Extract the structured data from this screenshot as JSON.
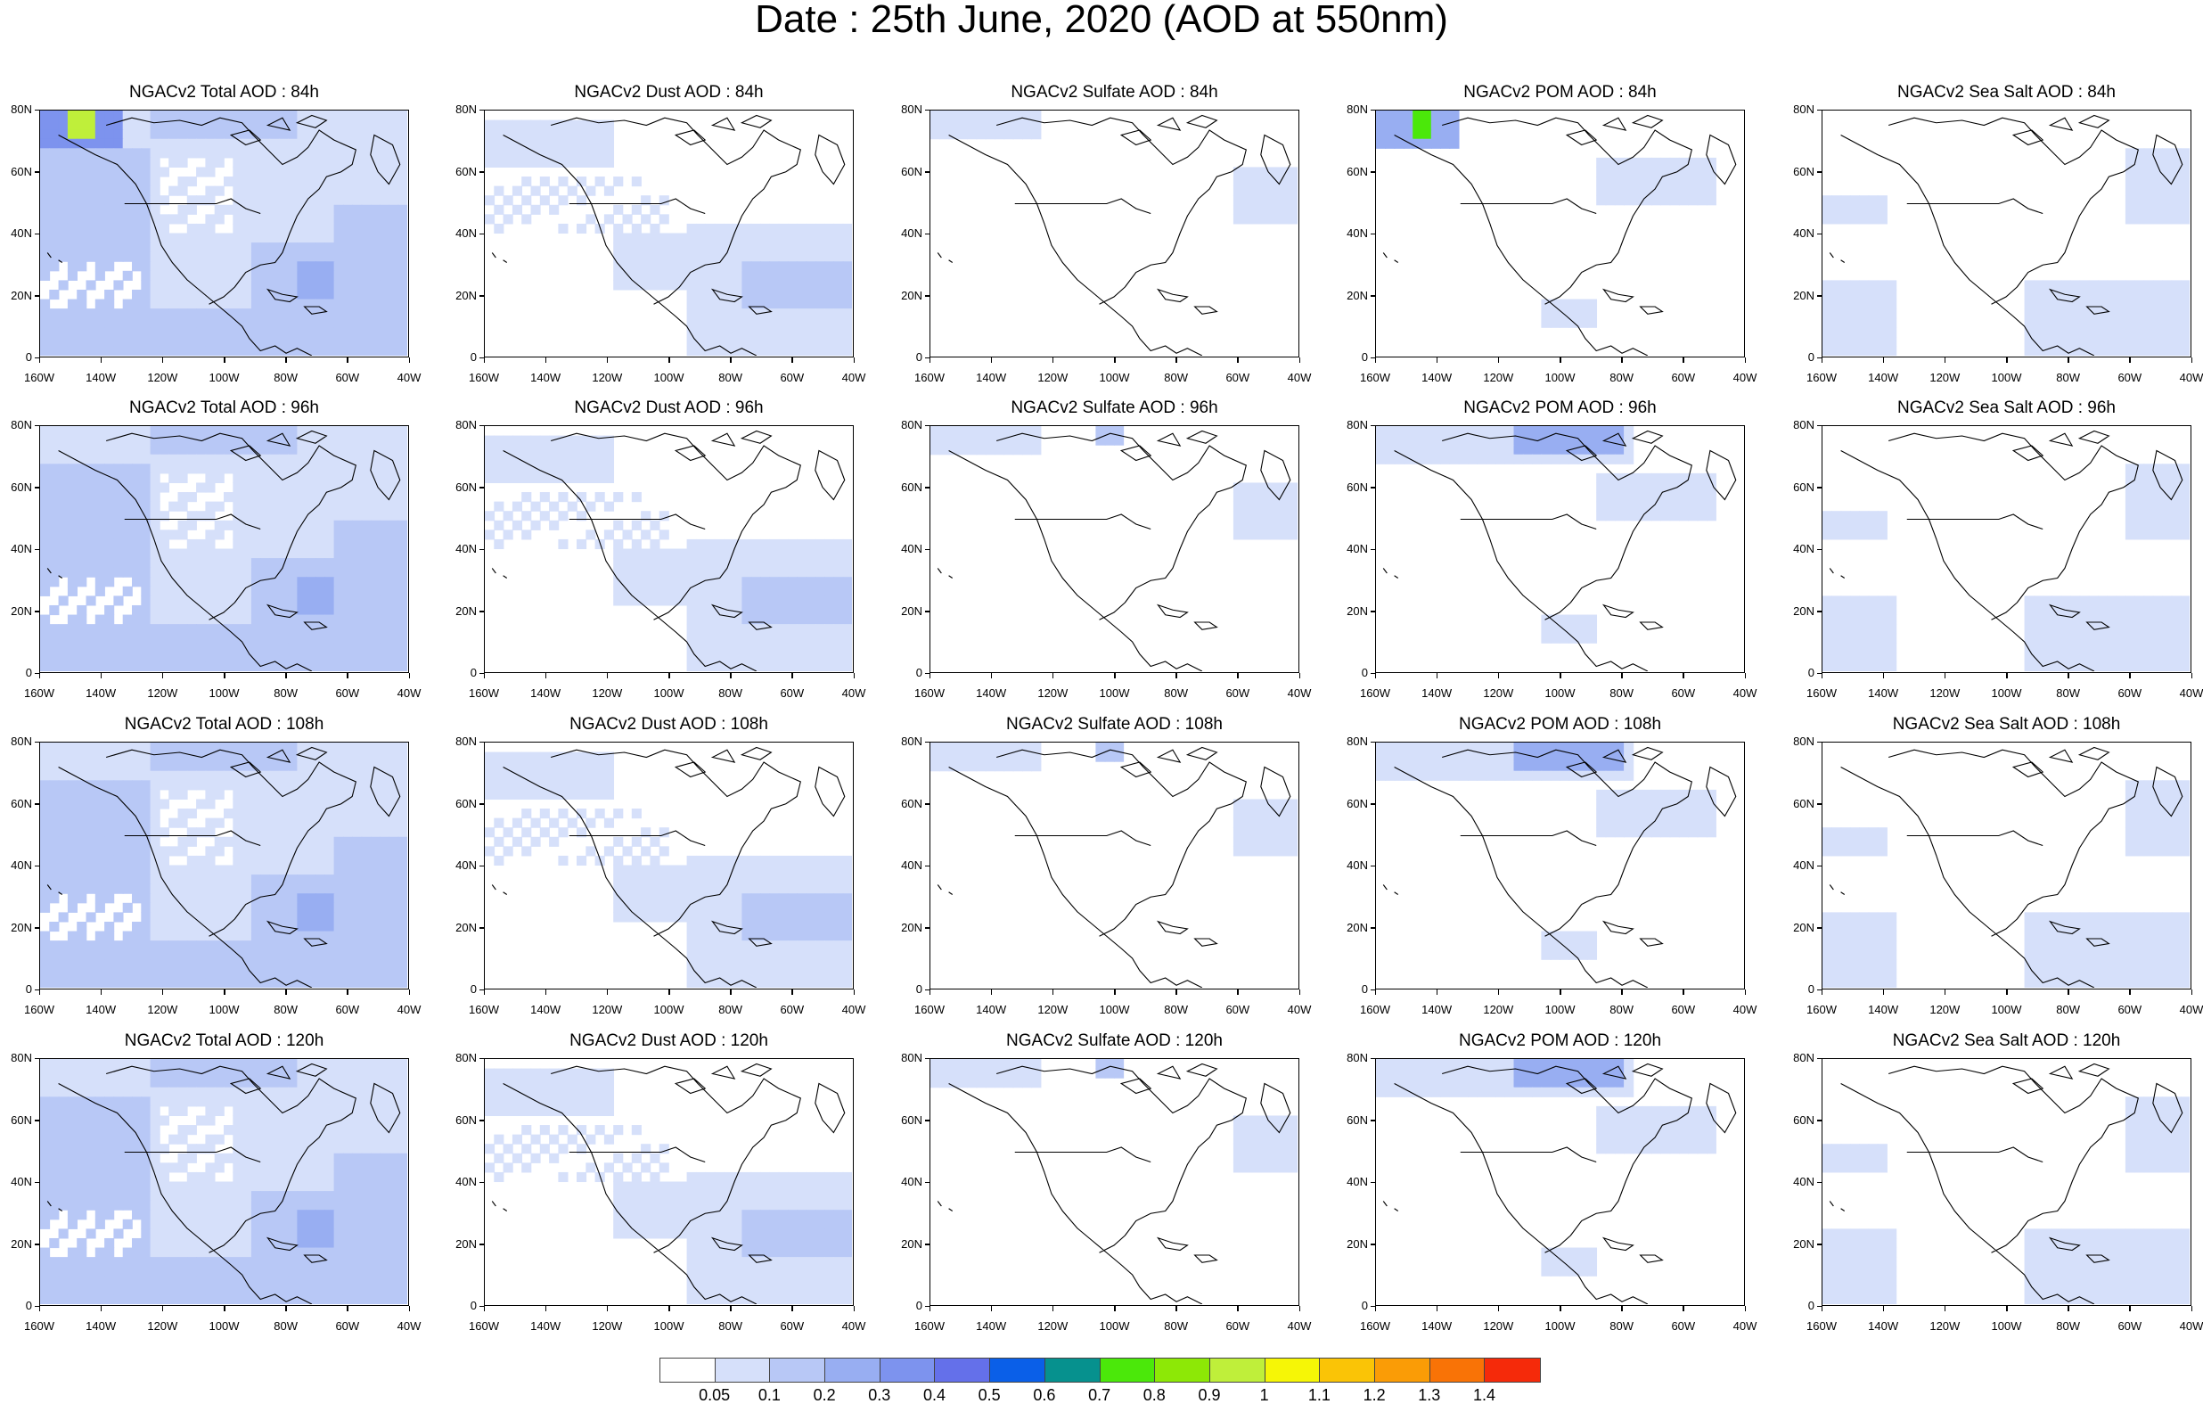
{
  "title": "Date : 25th June, 2020 (AOD at 550nm)",
  "panel_titles": [
    [
      "NGACv2 Total AOD : 84h",
      "NGACv2 Dust AOD : 84h",
      "NGACv2 Sulfate AOD : 84h",
      "NGACv2 POM AOD : 84h",
      "NGACv2 Sea Salt AOD : 84h"
    ],
    [
      "NGACv2 Total AOD : 96h",
      "NGACv2 Dust AOD : 96h",
      "NGACv2 Sulfate AOD : 96h",
      "NGACv2 POM AOD : 96h",
      "NGACv2 Sea Salt AOD : 96h"
    ],
    [
      "NGACv2 Total AOD : 108h",
      "NGACv2 Dust AOD : 108h",
      "NGACv2 Sulfate AOD : 108h",
      "NGACv2 POM AOD : 108h",
      "NGACv2 Sea Salt AOD : 108h"
    ],
    [
      "NGACv2 Total AOD : 120h",
      "NGACv2 Dust AOD : 120h",
      "NGACv2 Sulfate AOD : 120h",
      "NGACv2 POM AOD : 120h",
      "NGACv2 Sea Salt  AOD : 120h"
    ]
  ],
  "lat_ticks": [
    "0",
    "20N",
    "40N",
    "60N",
    "80N"
  ],
  "lon_ticks": [
    "160W",
    "140W",
    "120W",
    "100W",
    "80W",
    "60W",
    "40W"
  ],
  "colorbar": {
    "colors": [
      "#ffffff",
      "#d6e0fa",
      "#b8c8f6",
      "#98aef2",
      "#7d93ee",
      "#6470ea",
      "#0a5fe8",
      "#06918e",
      "#4be80a",
      "#8de806",
      "#bfef3a",
      "#f6f606",
      "#fac406",
      "#fa9c06",
      "#f97306",
      "#f52a0a"
    ],
    "labels": [
      "0.05",
      "0.1",
      "0.2",
      "0.3",
      "0.4",
      "0.5",
      "0.6",
      "0.7",
      "0.8",
      "0.9",
      "1",
      "1.1",
      "1.2",
      "1.3",
      "1.4"
    ]
  }
}
